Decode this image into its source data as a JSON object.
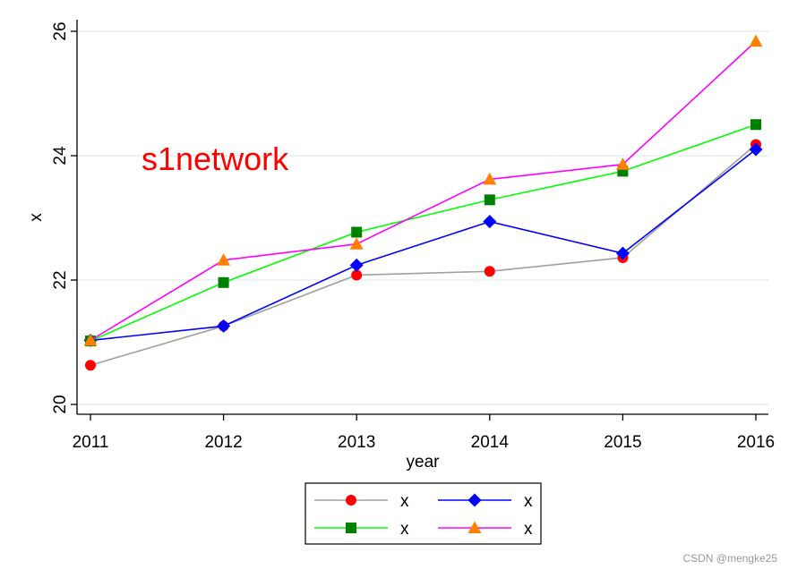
{
  "chart_data": {
    "type": "line",
    "title": "",
    "xlabel": "year",
    "ylabel": "x",
    "x": [
      2011,
      2012,
      2013,
      2014,
      2015,
      2016
    ],
    "xticks": [
      "2011",
      "2012",
      "2013",
      "2014",
      "2015",
      "2016"
    ],
    "yticks": [
      "20",
      "22",
      "24",
      "26"
    ],
    "ylim": [
      20,
      26
    ],
    "xlim": [
      2011,
      2016
    ],
    "grid": "horizontal",
    "legend_position": "bottom",
    "series": [
      {
        "name": "x",
        "values": [
          20.63,
          21.26,
          22.08,
          22.14,
          22.36,
          24.18
        ],
        "line_color": "#a0a0a0",
        "marker": "circle",
        "marker_color": "#ff0000"
      },
      {
        "name": "x",
        "values": [
          21.03,
          21.26,
          22.24,
          22.94,
          22.43,
          24.1
        ],
        "line_color": "#0000ff",
        "marker": "diamond",
        "marker_color": "#0000ff"
      },
      {
        "name": "x",
        "values": [
          21.02,
          21.96,
          22.77,
          23.29,
          23.75,
          24.5
        ],
        "line_color": "#00ff00",
        "marker": "square",
        "marker_color": "#008000"
      },
      {
        "name": "x",
        "values": [
          21.03,
          22.32,
          22.58,
          23.62,
          23.86,
          25.84
        ],
        "line_color": "#ff00ff",
        "marker": "triangle",
        "marker_color": "#ff8000"
      }
    ],
    "annotations": [
      {
        "text": "s1network",
        "color": "#ff0000"
      }
    ]
  },
  "watermark": "CSDN @mengke25"
}
